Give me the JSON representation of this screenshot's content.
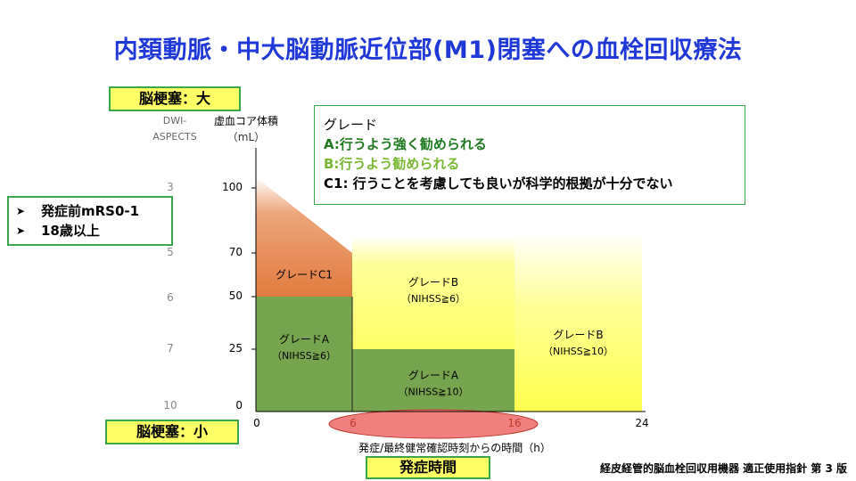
{
  "title": "内頚動脈・中大脳動脈近位部(M1)閉塞への血栓回収療法",
  "infarct_large_label": "脳梗塞：大",
  "infarct_small_label": "脳梗塞：小",
  "onset_time_label": "発症時間",
  "aspects_header": [
    "DWI-",
    "ASPECTS"
  ],
  "volume_header": [
    "虚血コア体積",
    "（mL）"
  ],
  "criteria": [
    {
      "icon": "arrow-bullet-icon",
      "text": "発症前mRS0-1"
    },
    {
      "icon": "arrow-bullet-icon",
      "text": "18歳以上"
    }
  ],
  "legend": {
    "heading": "グレード",
    "lines": [
      {
        "text": "A:行うよう強く勧められる",
        "color": "#1e7a1e"
      },
      {
        "text": "B:行うよう勧められる",
        "color": "#78b832"
      },
      {
        "text": "C1: 行うことを考慮しても良いが科学的根拠が十分でない",
        "color": "#000000"
      }
    ]
  },
  "x_axis_caption": "発症/最終健常確認時刻からの時間（h）",
  "footer": "経皮経管的脳血栓回収用機器 適正使用指針 第 3 版",
  "colors": {
    "grade_a": "#77a54f",
    "grade_c1": "#e2864a",
    "grade_b": "#ffff66",
    "accent_box": "#3aa84a",
    "highlight_ellipse": "#f08080",
    "title": "#1f39d8"
  },
  "chart_data": {
    "type": "area",
    "x_ticks": [
      "0",
      "6",
      "16",
      "24"
    ],
    "y_ticks_volume": [
      "100",
      "70",
      "50",
      "25",
      "0"
    ],
    "y_ticks_aspects": [
      "3",
      "5",
      "6",
      "7",
      "10"
    ],
    "xlabel": "発症/最終健常確認時刻からの時間（h）",
    "ylabel": "虚血コア体積（mL）",
    "regions": [
      {
        "label": "グレードC1",
        "sub": "",
        "x": [
          0,
          6
        ],
        "y": [
          50,
          100
        ],
        "grade": "C1"
      },
      {
        "label": "グレードA",
        "sub": "（NIHSS≧6）",
        "x": [
          0,
          6
        ],
        "y": [
          0,
          50
        ],
        "grade": "A"
      },
      {
        "label": "グレードB",
        "sub": "（NIHSS≧6）",
        "x": [
          6,
          16
        ],
        "y": [
          25,
          70
        ],
        "grade": "B"
      },
      {
        "label": "グレードA",
        "sub": "（NIHSS≧10）",
        "x": [
          6,
          16
        ],
        "y": [
          0,
          25
        ],
        "grade": "A"
      },
      {
        "label": "グレードB",
        "sub": "（NIHSS≧10）",
        "x": [
          16,
          24
        ],
        "y": [
          0,
          70
        ],
        "grade": "B"
      }
    ],
    "highlight_range_hours": [
      6,
      16
    ]
  }
}
